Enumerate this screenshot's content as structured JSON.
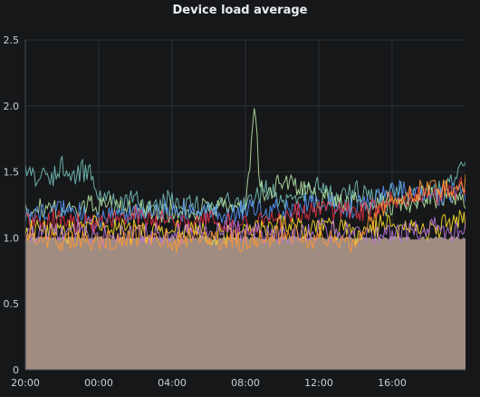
{
  "chart_data": {
    "type": "line",
    "title": "Device load average",
    "xlabel": "",
    "ylabel": "",
    "ylim": [
      0,
      2.5
    ],
    "xlim": [
      0,
      24
    ],
    "y_ticks": [
      "0",
      "0.5",
      "1.0",
      "1.5",
      "2.0",
      "2.5"
    ],
    "y_tick_values": [
      0,
      0.5,
      1.0,
      1.5,
      2.0,
      2.5
    ],
    "x_ticks": [
      "20:00",
      "00:00",
      "04:00",
      "08:00",
      "12:00",
      "16:00"
    ],
    "x_tick_values": [
      0,
      4,
      8,
      12,
      16,
      20
    ],
    "grid": true,
    "legend": "none",
    "background_color": "#161719",
    "grid_color": "#2c3235",
    "fill_color": "#a18c82",
    "series": [
      {
        "color": "#73bfb8",
        "x": [
          0,
          0.5,
          1,
          1.5,
          2,
          2.5,
          3,
          3.5,
          4,
          5,
          6,
          7,
          8,
          9,
          10,
          11,
          12,
          12.5,
          13,
          13.5,
          14,
          15,
          16,
          17,
          18,
          19,
          20,
          21,
          22,
          23,
          24
        ],
        "y": [
          1.58,
          1.52,
          1.6,
          1.55,
          1.62,
          1.5,
          1.6,
          1.55,
          1.4,
          1.32,
          1.38,
          1.3,
          1.36,
          1.33,
          1.3,
          1.35,
          1.32,
          1.38,
          1.45,
          1.4,
          1.36,
          1.42,
          1.45,
          1.38,
          1.42,
          1.4,
          1.44,
          1.38,
          1.42,
          1.46,
          1.68
        ]
      },
      {
        "color": "#b5e3a1",
        "x": [
          0,
          2,
          4,
          6,
          8,
          10,
          12,
          12.2,
          12.5,
          12.8,
          13,
          14,
          15,
          16,
          18,
          20,
          22,
          24
        ],
        "y": [
          1.3,
          1.28,
          1.32,
          1.3,
          1.28,
          1.3,
          1.32,
          1.6,
          2.02,
          1.5,
          1.35,
          1.55,
          1.45,
          1.38,
          1.35,
          1.32,
          1.4,
          1.36
        ]
      },
      {
        "color": "#5794f2",
        "x": [
          0,
          2,
          4,
          6,
          8,
          10,
          12,
          14,
          16,
          18,
          20,
          22,
          24
        ],
        "y": [
          1.25,
          1.3,
          1.22,
          1.28,
          1.3,
          1.25,
          1.3,
          1.28,
          1.35,
          1.3,
          1.45,
          1.38,
          1.42
        ]
      },
      {
        "color": "#e02f44",
        "x": [
          0,
          2,
          4,
          6,
          8,
          10,
          12,
          14,
          16,
          18,
          20,
          22,
          24
        ],
        "y": [
          1.2,
          1.22,
          1.18,
          1.25,
          1.2,
          1.22,
          1.18,
          1.24,
          1.3,
          1.28,
          1.35,
          1.4,
          1.45
        ]
      },
      {
        "color": "#fade2a",
        "x": [
          0,
          2,
          4,
          6,
          8,
          10,
          12,
          14,
          16,
          18,
          20,
          22,
          24
        ],
        "y": [
          1.15,
          1.1,
          1.18,
          1.12,
          1.15,
          1.1,
          1.12,
          1.18,
          1.15,
          1.12,
          1.18,
          1.15,
          1.2
        ]
      },
      {
        "color": "#b877d9",
        "x": [
          0,
          2,
          4,
          6,
          8,
          10,
          12,
          14,
          16,
          18,
          20,
          22,
          24
        ],
        "y": [
          1.1,
          1.15,
          1.08,
          1.12,
          1.1,
          1.15,
          1.12,
          1.1,
          1.14,
          1.12,
          1.1,
          1.15,
          1.12
        ]
      },
      {
        "color": "#ff9830",
        "x": [
          0,
          2,
          4,
          6,
          8,
          10,
          12,
          14,
          16,
          18,
          20,
          22,
          24
        ],
        "y": [
          1.05,
          1.08,
          1.06,
          1.1,
          1.05,
          1.08,
          1.06,
          1.1,
          1.08,
          1.05,
          1.38,
          1.45,
          1.5
        ]
      }
    ]
  }
}
